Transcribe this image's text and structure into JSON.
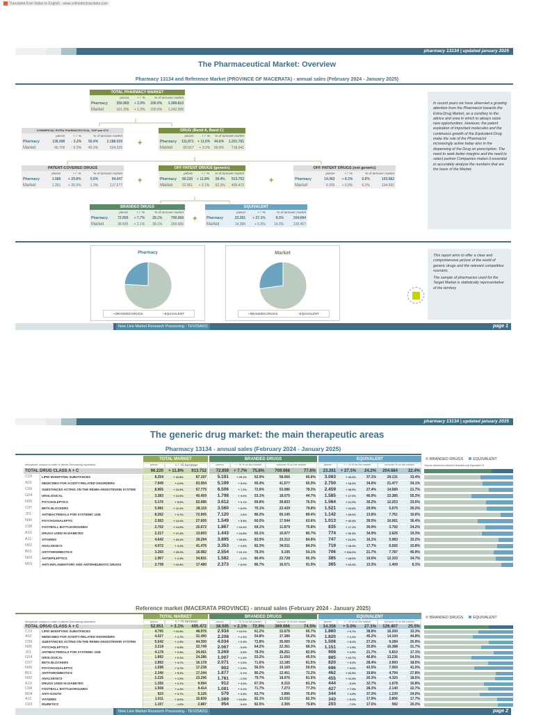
{
  "translator_note": "Translated from Italian to English - www.onlinedoctranslator.com",
  "header_text": "pharmacy 13134 | updated january 2025",
  "header_text_2": "pharmacy 13134 | updated january 2025",
  "page1": {
    "title": "The Pharmaceutical Market: Overview",
    "subtitle": "Pharmacy 13134 and Reference Market (PROVINCE OF MACERATA) - annual sales (February 2024 - January 2025)",
    "col_labels": [
      "pieces",
      "+ / -%",
      "% of turnover market"
    ],
    "row_labels": [
      "Pharmacy",
      "Market"
    ],
    "plus_sign": "+",
    "boxes": [
      {
        "id": "total-pharmacy-market",
        "title": "TOTAL PHARMACY MARKET",
        "color": "#7a8f45",
        "pharmacy": [
          "250.869",
          "+ 2.0%",
          "100.0%",
          "3.389.810"
        ],
        "market": [
          "101.266",
          "+ 1.0%",
          "100.0%",
          "1.242.366"
        ]
      },
      {
        "id": "commercial-extra-pharmaceutical",
        "title": "COMMERCIAL EXTRA PHARMACEUTICAL, SOP and OTC",
        "color": "#dcdcdc",
        "pharmacy": [
          "138.998",
          "- 3.2%",
          "55.4%",
          "2.188.029"
        ],
        "market": [
          "40.709",
          "- 0.3%",
          "40.2%",
          "524.325"
        ]
      },
      {
        "id": "drug-band-a-c",
        "title": "DRUG (Band A, Band C)",
        "color": "#7a8f45",
        "pharmacy": [
          "111,871",
          "+ 11.6%",
          "44.6%",
          "1.201.781"
        ],
        "market": [
          "60,557",
          "+ 3.2%",
          "59.8%",
          "718.041"
        ]
      },
      {
        "id": "patent-covered-drugs",
        "title": "PATENT-COVERED DRUGS",
        "color": "#dcdcdc",
        "pharmacy": [
          "1.589",
          "+ 29.8%",
          "0.6%",
          "94.447"
        ],
        "market": [
          "1.351",
          "+ 20.3%",
          "1.3%",
          "117.577"
        ]
      },
      {
        "id": "off-patent-generic",
        "title": "OFF PATENT DRUGS (generic)",
        "color": "#7a8f45",
        "pharmacy": [
          "96.220",
          "+ 11.8%",
          "38.4%",
          "913.752"
        ],
        "market": [
          "52.951",
          "+ 3.1%",
          "52.3%",
          "495.472"
        ]
      },
      {
        "id": "off-patent-not-generic",
        "title": "OFF PATENT DRUGS (not generic)",
        "color": "#dcdcdc",
        "pharmacy": [
          "14.062",
          "+ 8.3%",
          "5.6%",
          "193.582"
        ],
        "market": [
          "6.255",
          "+ 0.9%",
          "6.2%",
          "104.992"
        ]
      },
      {
        "id": "branded-drugs",
        "title": "BRANDED DRUGS",
        "color": "#5b8a6a",
        "pharmacy": [
          "72.959",
          "+ 7.7%",
          "29.1%",
          "709.068"
        ],
        "market": [
          "38.595",
          "+ 2.1%",
          "38.1%",
          "369.066"
        ]
      },
      {
        "id": "equivalent",
        "title": "EQUIVALENT",
        "color": "#6aa4c0",
        "pharmacy": [
          "23.261",
          "+ 27.1%",
          "9.3%",
          "204.684"
        ],
        "market": [
          "14.356",
          "+ 5.0%",
          "14.2%",
          "126.407"
        ]
      }
    ],
    "intro_text": "In recent years we have observed a growing attention from the Pharmacist towards the Extra-Drug Market, as a corollary to the advice and area in which to always seize new opportunities. However, the patent expiration of important molecules and the continuous growth of the Equivalent Drug make the role of the Pharmacist increasingly active today also in the dispensing of the Drug on prescription. The need to seek better margins and the need to select partner Companies makes it essential to accurately analyze the numbers that are the basis of the Market.",
    "report_text_1": "This report aims to offer a clear and comprehensive picture of the world of generic drugs and the relevant competitive scenario.",
    "report_text_2": "The sample of pharmacies used for the Target Market is statistically representative of the territory",
    "footer": "New Line Market Research Processing - TEV25A011",
    "page": "page 1"
  },
  "chart_data": [
    {
      "type": "pie",
      "title": "Pharmacy",
      "legend": [
        "BRANDED DRUGS",
        "EQUIVALENT"
      ],
      "values": [
        75.8,
        24.2
      ],
      "colors": [
        "#bccbbf",
        "#6aa4c0"
      ],
      "legend_placement": "bottom"
    },
    {
      "type": "pie",
      "title": "Market",
      "legend": [
        "BRANDED DRUGS",
        "EQUIVALENT"
      ],
      "values": [
        72.9,
        27.1
      ],
      "colors": [
        "#bccbbf",
        "#6aa4c0"
      ],
      "legend_placement": "bottom"
    }
  ],
  "page2": {
    "title": "The generic drug market: the main therapeutic areas",
    "group_headers": [
      "TOTAL MARKET",
      "BRANDED DRUGS",
      "EQUIVALENT"
    ],
    "row_header": "therapeutic classes in order of pieces Decreasing equivalent",
    "sub_headers": {
      "pieces": "pieces",
      "tm_var": "+ / -% turnover",
      "var": "+ / -% % on the market",
      "turnover": "turnover % on the market"
    },
    "legend": [
      "BRANDED DRUGS",
      "EQUIVALENT"
    ],
    "chart_subtitle": "Volume distribution between Branded and Equivalent %",
    "colors": {
      "branded": "#bccbbf",
      "equivalent": "#6aa4c0",
      "branded_total": "#5b8a6a",
      "equivalent_total": "#3d7088"
    },
    "tables": [
      {
        "title": "Pharmacy 13134 - annual sales (February 2024 - January 2025)",
        "rows": [
          [
            "",
            "TOTAL DRUG CLASS A + C",
            "96.220",
            "+ 11.8%",
            "913.752",
            "72.959",
            "+ 7.7%",
            "75.8%",
            "709.068",
            "77.6%",
            "23.261",
            "+ 27.1%",
            "24.2%",
            "204.684",
            "22.4%"
          ],
          [
            "C10",
            "LIPID MODIFYING SUBSTANCES",
            "8.254",
            "+ 31.8%",
            "87.197",
            "5.191",
            "+ 25.1%",
            "62.9%",
            "58.066",
            "66.6%",
            "3.063",
            "+ 45.0%",
            "37.1%",
            "29.131",
            "33.4%"
          ],
          [
            "A02",
            "MEDICINES FOR ACIDITY-RELATED DISORDERS",
            "7.949",
            "+ 6.0%",
            "63.054",
            "5.199",
            "+ 5.0%",
            "65.4%",
            "41.577",
            "65.9%",
            "2.750",
            "+ 18.2%",
            "34.6%",
            "21.477",
            "34.1%"
          ],
          [
            "C09",
            "SUBSTANCES ACTING ON THE RENIN-ANGIOTENSIN SYSTEM",
            "8.965",
            "+ 13.9%",
            "67.775",
            "6.506",
            "+ 7.2%",
            "72.6%",
            "53.086",
            "78.3%",
            "2.459",
            "+ 38.5%",
            "27.4%",
            "14.689",
            "21.7%"
          ],
          [
            "G04",
            "UROLOGICAL",
            "3.383",
            "+ 13.0%",
            "40.459",
            "1.798",
            "+ 5.0%",
            "53.1%",
            "18.075",
            "44.7%",
            "1.585",
            "+ 27.0%",
            "46.9%",
            "22.385",
            "55.3%"
          ],
          [
            "N05",
            "PSYCHOLEPTICS",
            "5.176",
            "+ 5.6%",
            "52.086",
            "3.612",
            "+ 0.1%",
            "69.8%",
            "39.833",
            "76.5%",
            "1.564",
            "+ 21.0%",
            "30.2%",
            "12.253",
            "23.5%"
          ],
          [
            "C07",
            "BETA BLOCKERS",
            "5.081",
            "+ 11.2%",
            "28.115",
            "3.560",
            "+ 8.0%",
            "70.1%",
            "22.439",
            "79.8%",
            "1.521",
            "+ 16.8%",
            "29.9%",
            "5.675",
            "20.2%"
          ],
          [
            "J01",
            "ANTIBACTERIALS FOR SYSTEMIC USE",
            "8.262",
            "+ 0.7%",
            "72.905",
            "7.120",
            "- 1.6%",
            "86.2%",
            "65.145",
            "89.4%",
            "1.142",
            "+ 20.0%",
            "13.8%",
            "7.761",
            "10.6%"
          ],
          [
            "N06",
            "PSYCHOANALEPTIC",
            "2.562",
            "+ 14.2%",
            "27.605",
            "1.549",
            "+ 5.5%",
            "60.5%",
            "17.544",
            "63.6%",
            "1.013",
            "+ 30.3%",
            "39.5%",
            "10.061",
            "36.4%"
          ],
          [
            "C08",
            "FOOTBALL BATTLEGROUNDS",
            "2.702",
            "+ 14.9%",
            "15.672",
            "1.867",
            "+ 13.4%",
            "69.1%",
            "11.879",
            "75.8%",
            "835",
            "+ 17.1%",
            "30.9%",
            "3.792",
            "24.2%"
          ],
          [
            "A10",
            "DRUGS USED IN DIABETES",
            "2.217",
            "+ 27.4%",
            "13.603",
            "1.443",
            "+ 24.8%",
            "65.1%",
            "10.977",
            "80.7%",
            "774",
            "+ 32.3%",
            "34.9%",
            "2.625",
            "19.3%"
          ],
          [
            "A11",
            "VITAMINS",
            "4.642",
            "+ 25.4%",
            "39.294",
            "3.895",
            "+ 25.8%",
            "83.9%",
            "33.312",
            "84.8%",
            "747",
            "+ 24.3%",
            "16.1%",
            "5.983",
            "15.2%"
          ],
          [
            "N02",
            "ANALGESICS",
            "4.072",
            "+ 3.4%",
            "41.476",
            "3.353",
            "+ 0.5%",
            "82.3%",
            "34.911",
            "84.2%",
            "719",
            "+ 18.4%",
            "17.7%",
            "6.565",
            "15.8%"
          ],
          [
            "B01",
            "ANTITHROMBOTICS",
            "3.260",
            "+ 25.2%",
            "16.982",
            "2.554",
            "+ 13.1%",
            "78.3%",
            "9.195",
            "54.1%",
            "706",
            "+ 104.0%",
            "21.7%",
            "7.787",
            "45.9%"
          ],
          [
            "N03",
            "ANTIEPILEPTICS",
            "1.967",
            "+ 2.4%",
            "34.831",
            "1.582",
            "- 2.2%",
            "80.4%",
            "22.728",
            "65.3%",
            "385",
            "+ 28.6%",
            "19.6%",
            "12.103",
            "34.7%"
          ],
          [
            "M01",
            "ANTI-INFLAMMATORY AND ANTIRHEUMATIC DRUGS",
            "2.738",
            "+ 10.5%",
            "17.480",
            "2.373",
            "+ 8.0%",
            "86.7%",
            "16.071",
            "91.9%",
            "365",
            "+ 23.3%",
            "13.3%",
            "1.409",
            "8.1%"
          ]
        ]
      },
      {
        "title": "Reference market (MACERATA PROVINCE) - annual sales (February 2024 - January 2025)",
        "rows": [
          [
            "",
            "TOTAL DRUG CLASS A + C",
            "52.951",
            "+ 3.1%",
            "495.472",
            "38.595",
            "+ 2.1%",
            "72.9%",
            "369.066",
            "74.5%",
            "14.356",
            "+ 5.0%",
            "27.1%",
            "126.407",
            "25.5%"
          ],
          [
            "C10",
            "LIPID MODIFYING SUBSTANCES",
            "4.795",
            "+ 10.5%",
            "48.976",
            "2.934",
            "+ 13.0%",
            "61.2%",
            "32.676",
            "66.7%",
            "1.860",
            "+ 6.7%",
            "38.8%",
            "16.300",
            "33.3%"
          ],
          [
            "A02",
            "MEDICINES FOR ACIDITY-RELATED DISORDERS",
            "4.027",
            "+ 1.7%",
            "31.490",
            "2.208",
            "+ 2.1%",
            "54.8%",
            "17.386",
            "55.2%",
            "1.820",
            "+ 1.1%",
            "45.2%",
            "14.104",
            "44.8%"
          ],
          [
            "C09",
            "SUBSTANCES ACTING ON THE RENIN-ANGIOTENSIN SYSTEM",
            "5.542",
            "+ 2.5%",
            "44.350",
            "4.034",
            "+ 0.3%",
            "72.8%",
            "35.065",
            "79.1%",
            "1.508",
            "+ 8.2%",
            "27.2%",
            "9.284",
            "20.9%"
          ],
          [
            "N05",
            "PSYCHOLEPTICS",
            "3.218",
            "+ 0.5%",
            "32.749",
            "2.067",
            "- 0.0%",
            "64.2%",
            "22.361",
            "68.3%",
            "1.151",
            "+ 1.5%",
            "35.8%",
            "10.388",
            "31.7%"
          ],
          [
            "J01",
            "ANTIBACTERIALS FOR SYSTEMIC USE",
            "4.178",
            "+ 0.4%",
            "34.061",
            "3.269",
            "- 0.5%",
            "78.3%",
            "28.251",
            "82.9%",
            "908",
            "+ 3.5%",
            "21.7%",
            "5.810",
            "17.1%"
          ],
          [
            "G04",
            "UROLOGICAL",
            "1.892",
            "+ 6.1%",
            "24.286",
            "1.007",
            "+ 2.4%",
            "53.2%",
            "11.050",
            "45.5%",
            "885",
            "+ 10.7%",
            "46.8%",
            "13.236",
            "54.5%"
          ],
          [
            "C07",
            "BETA BLOCKERS",
            "2.892",
            "+ 3.7%",
            "16.178",
            "2.071",
            "+ 2.0%",
            "71.6%",
            "13.185",
            "81.5%",
            "820",
            "+ 5.0%",
            "28.4%",
            "2.993",
            "18.5%"
          ],
          [
            "N06",
            "PSYCHOANALEPTIC",
            "1.598",
            "+ 3.7%",
            "17.238",
            "902",
            "+ 2.0%",
            "56.5%",
            "10.169",
            "59.0%",
            "696",
            "+ 5.0%",
            "43.5%",
            "7.069",
            "41.0%"
          ],
          [
            "B01",
            "ANTITHROMBOTICS",
            "2.340",
            "+ 5.2%",
            "17.244",
            "1.877",
            "- 0.1%",
            "80.2%",
            "12.451",
            "72.2%",
            "462",
            "+ 34.5%",
            "19.8%",
            "4.794",
            "27.8%"
          ],
          [
            "N02",
            "ANALGESICS",
            "2.235",
            "+ 1.0%",
            "23.296",
            "1.781",
            "- 1.3%",
            "79.7%",
            "18.976",
            "81.5%",
            "455",
            "+ 11.4%",
            "20.3%",
            "4.320",
            "18.5%"
          ],
          [
            "A10",
            "DRUGS USED IN DIABETES",
            "1.356",
            "+ 2.1%",
            "9.994",
            "912",
            "+ 3.0%",
            "67.3%",
            "8.315",
            "83.2%",
            "444",
            "- 0.9%",
            "32.7%",
            "1.678",
            "16.8%"
          ],
          [
            "C08",
            "FOOTBALL BATTLEGROUNDS",
            "1.508",
            "+ 4.4%",
            "9.414",
            "1.081",
            "+ 3.1%",
            "71.7%",
            "7.273",
            "77.3%",
            "427",
            "+ 7.9%",
            "28.3%",
            "2.140",
            "22.7%"
          ],
          [
            "M04",
            "ANTI-GOUTH",
            "923",
            "+ 3.7%",
            "5.126",
            "579",
            "+ 3.4%",
            "62.7%",
            "3.896",
            "76.0%",
            "344",
            "+ 4.5%",
            "37.3%",
            "1.230",
            "24.0%"
          ],
          [
            "A11",
            "VITAMINS",
            "1.911",
            "+ 8.0%",
            "15.839",
            "1.569",
            "+ 10.8%",
            "82.1%",
            "13.032",
            "82.3%",
            "343",
            "+ 5.2%",
            "17.9%",
            "2.806",
            "17.7%"
          ],
          [
            "C03",
            "DIURETICS",
            "1.157",
            "- 1.0%",
            "2.887",
            "954",
            "- 0.6%",
            "82.5%",
            "2.305",
            "79.8%",
            "203",
            "- 7.0%",
            "17.5%",
            "582",
            "20.2%"
          ]
        ]
      }
    ],
    "footer": "New Line Market Research Processing - TEV25A011",
    "page": "page 2"
  }
}
